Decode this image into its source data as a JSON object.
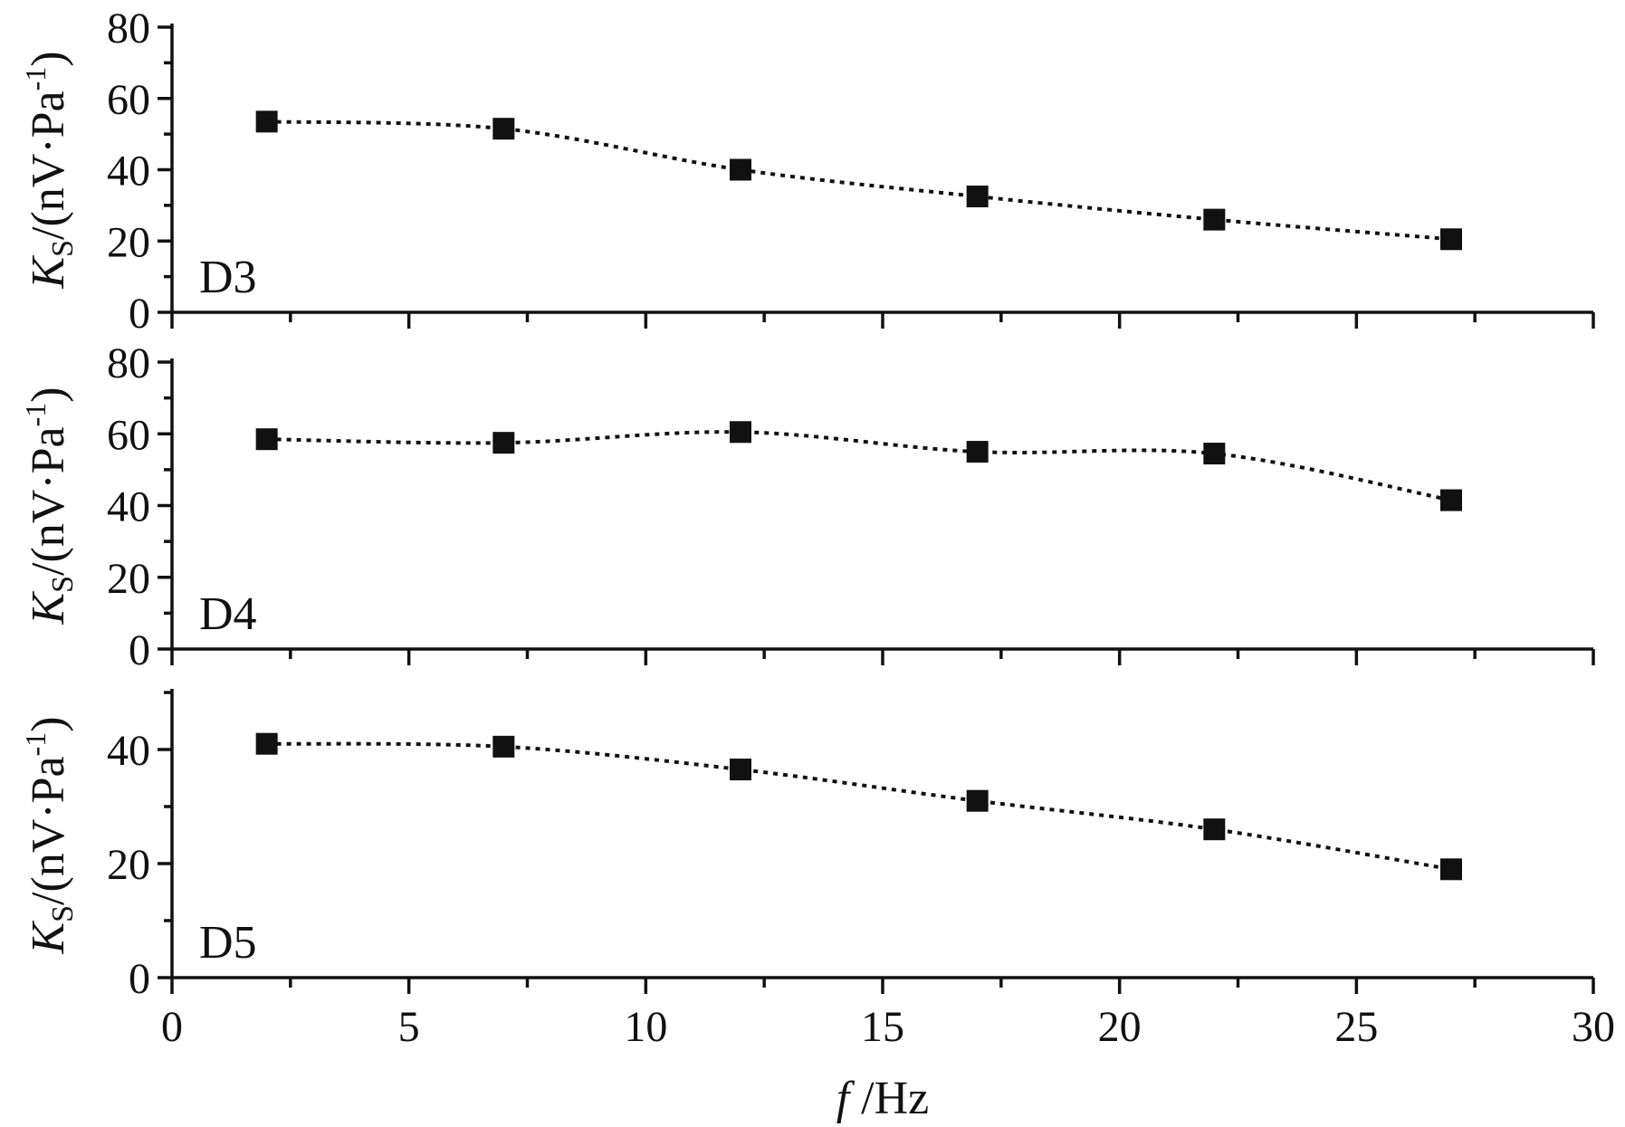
{
  "chart_data": [
    {
      "type": "line",
      "panel_label": "D3",
      "ylabel": {
        "var": "K",
        "sub": "S",
        "unit": "/(nV·Pa",
        "sup": "-1",
        "close": ")"
      },
      "ylim": [
        0,
        80
      ],
      "yticks": [
        "0",
        "20",
        "40",
        "60",
        "80"
      ],
      "xlim": [
        0,
        30
      ],
      "series": [
        {
          "x": [
            2,
            7,
            12,
            17,
            22,
            27
          ],
          "values": [
            53.5,
            51.5,
            40,
            32.5,
            26,
            20.5
          ]
        }
      ],
      "grid": false
    },
    {
      "type": "line",
      "panel_label": "D4",
      "ylabel": {
        "var": "K",
        "sub": "S",
        "unit": "/(nV·Pa",
        "sup": "-1",
        "close": ")"
      },
      "ylim": [
        0,
        80
      ],
      "yticks": [
        "0",
        "20",
        "40",
        "60",
        "80"
      ],
      "xlim": [
        0,
        30
      ],
      "series": [
        {
          "x": [
            2,
            7,
            12,
            17,
            22,
            27
          ],
          "values": [
            58.5,
            57.5,
            60.5,
            55,
            54.5,
            41.5
          ]
        }
      ],
      "grid": false
    },
    {
      "type": "line",
      "panel_label": "D5",
      "ylabel": {
        "var": "K",
        "sub": "S",
        "unit": "/(nV·Pa",
        "sup": "-1",
        "close": ")"
      },
      "ylim": [
        0,
        50
      ],
      "yticks": [
        "0",
        "20",
        "40"
      ],
      "xlim": [
        0,
        30
      ],
      "series": [
        {
          "x": [
            2,
            7,
            12,
            17,
            22,
            27
          ],
          "values": [
            41,
            40.5,
            36.5,
            31,
            26,
            19
          ]
        }
      ],
      "xticks": [
        "0",
        "5",
        "10",
        "15",
        "20",
        "25",
        "30"
      ],
      "xlabel": {
        "var": "f",
        "unit": " /Hz"
      },
      "grid": false
    }
  ]
}
